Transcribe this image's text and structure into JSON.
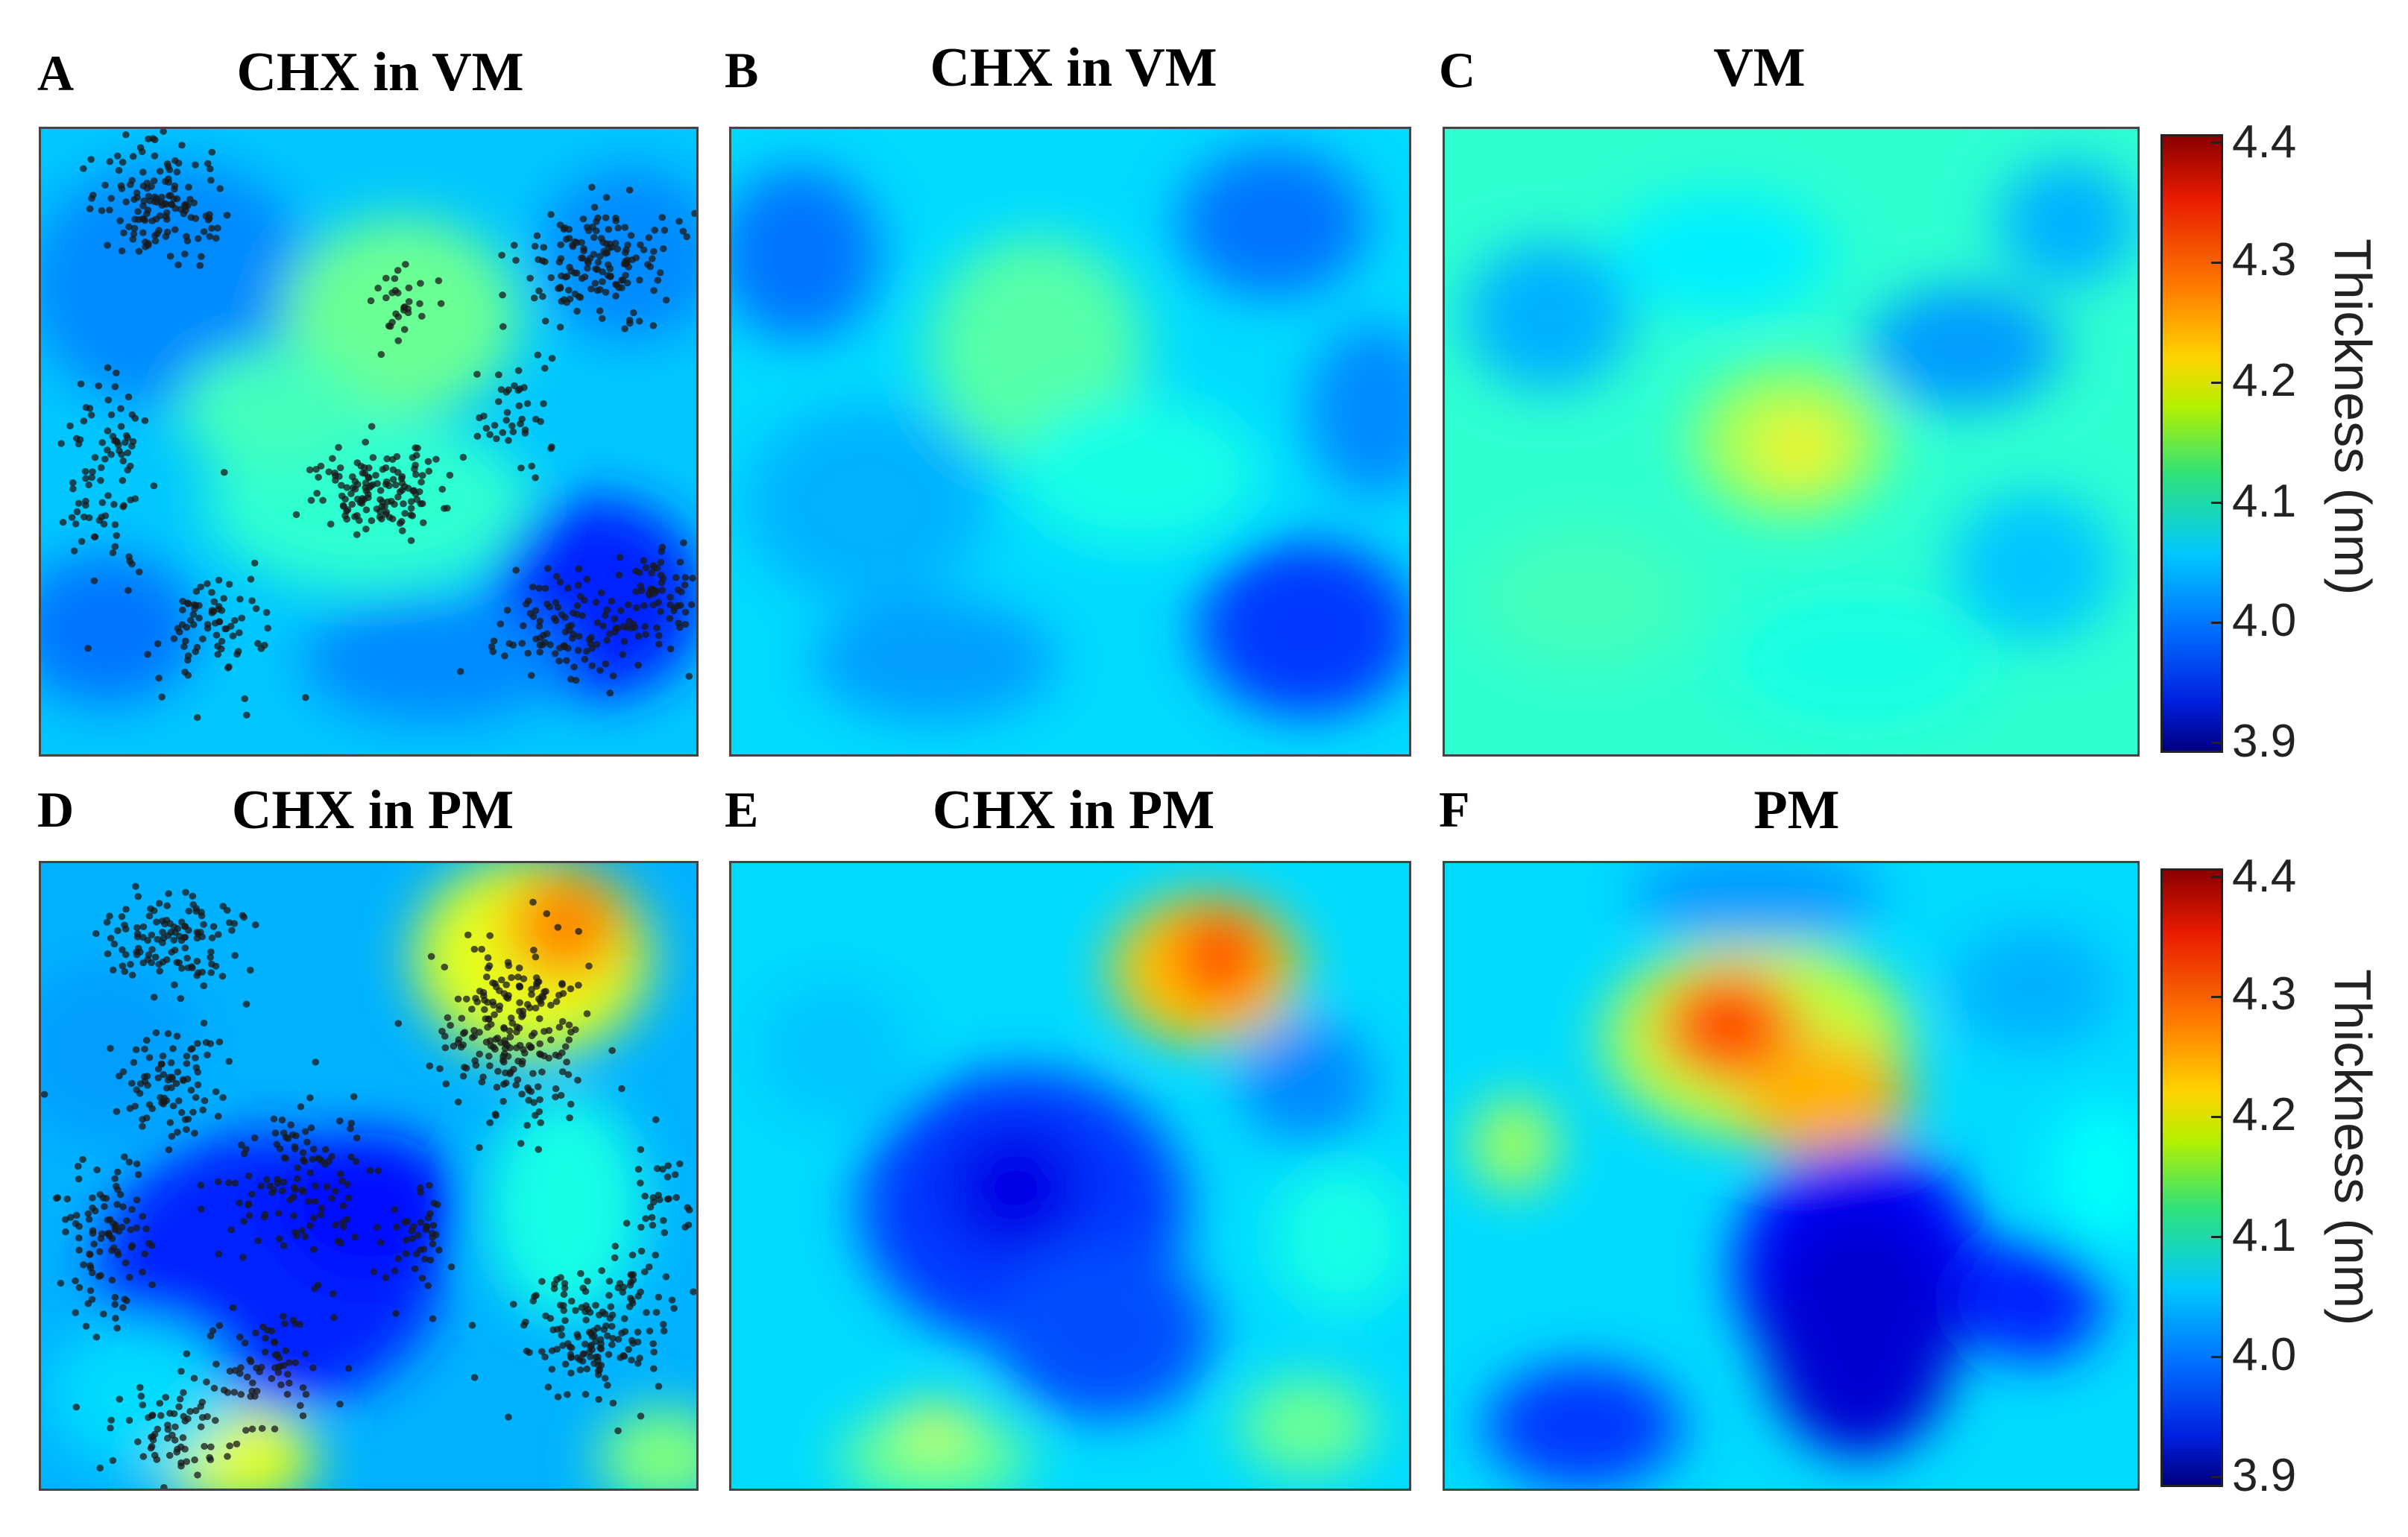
{
  "panels": [
    {
      "letter": "A",
      "title": "CHX in VM",
      "membrane": "VM",
      "scatter": true
    },
    {
      "letter": "B",
      "title": "CHX in VM",
      "membrane": "VM",
      "scatter": false
    },
    {
      "letter": "C",
      "title": "VM",
      "membrane": "VM",
      "scatter": false
    },
    {
      "letter": "D",
      "title": "CHX in PM",
      "membrane": "PM",
      "scatter": true
    },
    {
      "letter": "E",
      "title": "CHX in PM",
      "membrane": "PM",
      "scatter": false
    },
    {
      "letter": "F",
      "title": "PM",
      "membrane": "PM",
      "scatter": false
    }
  ],
  "colorbar": {
    "label": "Thickness (nm)",
    "ticks": [
      "4.4",
      "4.3",
      "4.2",
      "4.1",
      "4.0",
      "3.9"
    ],
    "min": 3.9,
    "max": 4.4,
    "colormap": "jet"
  },
  "chart_data": {
    "type": "heatmap",
    "panels": [
      "A",
      "B",
      "C",
      "D",
      "E",
      "F"
    ],
    "color_range": [
      3.9,
      4.4
    ],
    "colorbar_ticks": [
      3.9,
      4.0,
      4.1,
      4.2,
      4.3,
      4.4
    ],
    "colorbar_label": "Thickness (nm)",
    "approx_peak_values": {
      "A": 4.15,
      "B": 4.14,
      "C": 4.2,
      "D": 4.28,
      "E": 4.3,
      "F": 4.34
    },
    "approx_min_values": {
      "A": 3.96,
      "B": 3.98,
      "C": 4.02,
      "D": 3.96,
      "E": 3.96,
      "F": 3.93
    },
    "overlay": {
      "A": "CHX positions (black dots)",
      "D": "CHX positions (black dots)"
    }
  }
}
